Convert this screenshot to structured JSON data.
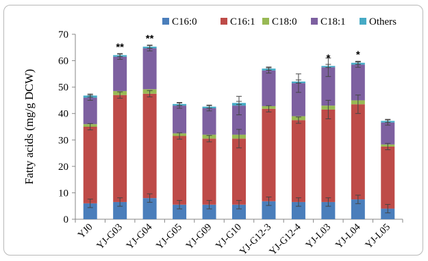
{
  "chart_data": {
    "type": "bar",
    "stacked": true,
    "title": "",
    "xlabel": "",
    "ylabel": "Fatty acids (mg/g DCW)",
    "ylim": [
      0,
      70
    ],
    "yticks": [
      0,
      10,
      20,
      30,
      40,
      50,
      60,
      70
    ],
    "grid": false,
    "legend_position": "top",
    "categories": [
      "YJ0",
      "YJ-G03",
      "YJ-G04",
      "YJ-G05",
      "YJ-G09",
      "YJ-G10",
      "YJ-G12-3",
      "YJ-G12-4",
      "YJ-L03",
      "YJ-L04",
      "YJ-L05"
    ],
    "series": [
      {
        "name": "C16:0",
        "color": "#4a7ebb",
        "values": [
          6.0,
          6.5,
          8.0,
          5.5,
          5.5,
          5.5,
          6.8,
          6.5,
          6.5,
          7.5,
          4.0
        ]
      },
      {
        "name": "C16:1",
        "color": "#be4b48",
        "values": [
          29.0,
          40.5,
          39.5,
          26.0,
          25.0,
          25.0,
          35.0,
          31.0,
          35.0,
          36.0,
          23.5
        ]
      },
      {
        "name": "C18:0",
        "color": "#98b954",
        "values": [
          1.0,
          1.5,
          1.7,
          1.0,
          1.5,
          1.5,
          1.0,
          1.5,
          1.5,
          1.5,
          0.8
        ]
      },
      {
        "name": "C18:1",
        "color": "#7d60a0",
        "values": [
          10.0,
          13.0,
          15.5,
          10.5,
          10.0,
          11.0,
          13.5,
          12.5,
          14.5,
          13.5,
          8.3
        ]
      },
      {
        "name": "Others",
        "color": "#46aac5",
        "values": [
          0.8,
          0.6,
          0.6,
          0.6,
          0.6,
          1.0,
          0.7,
          0.6,
          0.5,
          0.7,
          0.6
        ]
      }
    ],
    "significance": [
      "",
      "**",
      "**",
      "",
      "",
      "",
      "",
      "",
      "*",
      "*",
      ""
    ]
  }
}
